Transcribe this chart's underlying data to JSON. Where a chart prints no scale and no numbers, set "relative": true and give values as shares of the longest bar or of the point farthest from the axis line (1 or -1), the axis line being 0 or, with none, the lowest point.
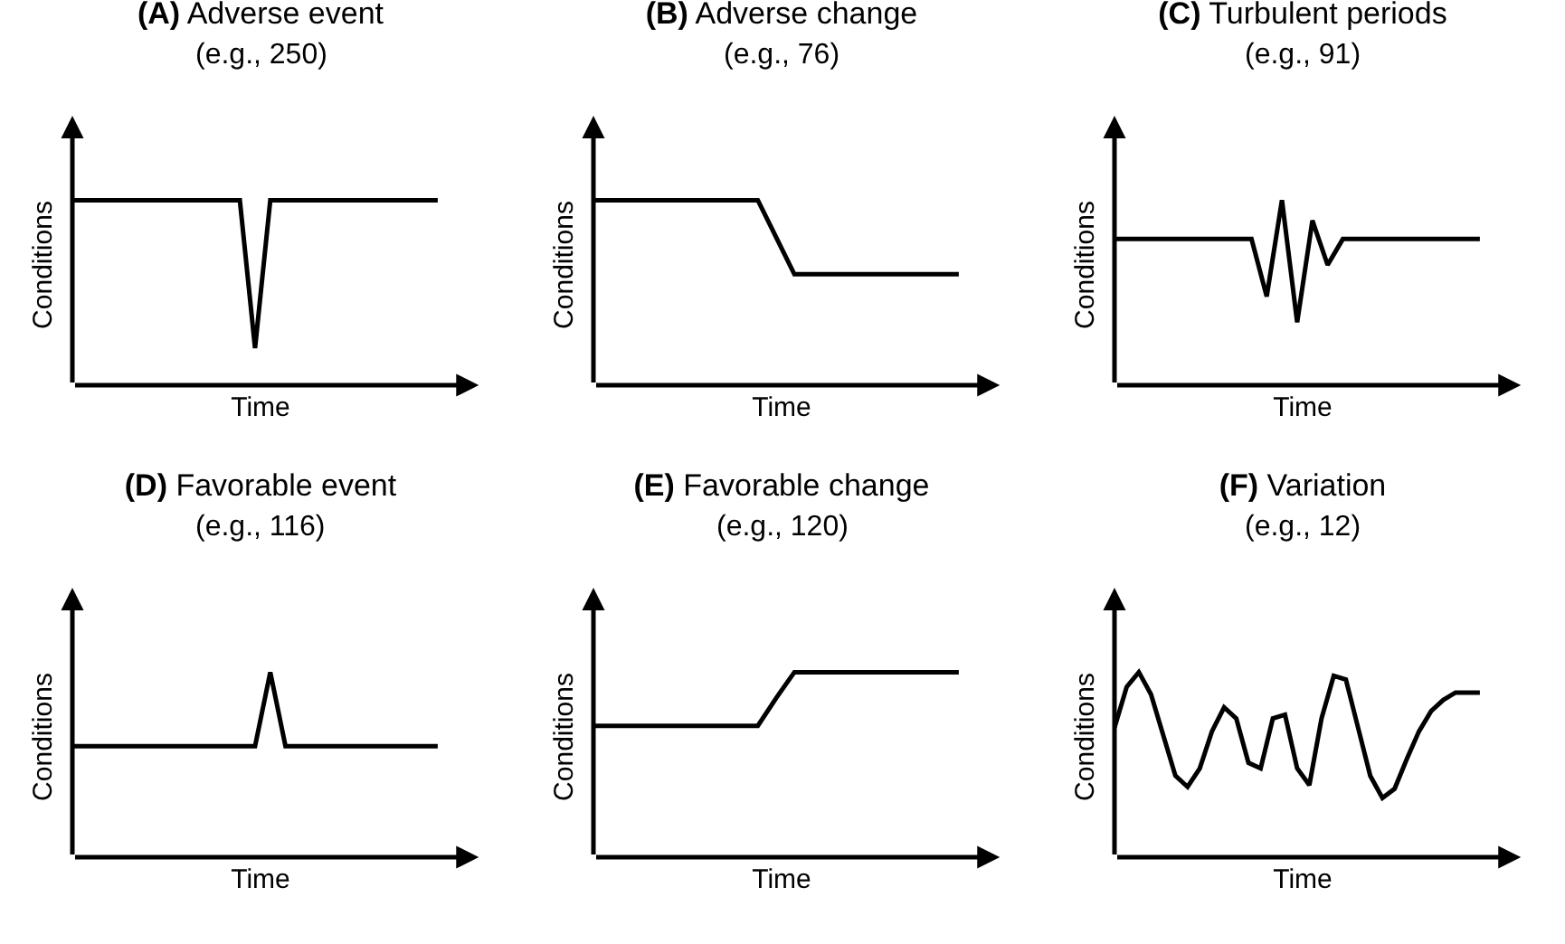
{
  "chart_data": [
    {
      "type": "line",
      "title": "(A) Adverse event",
      "subtitle": "(e.g., 250)",
      "xlabel": "Time",
      "ylabel": "Conditions",
      "relative": true,
      "color": "#000000",
      "marker": "none",
      "line_style": "solid",
      "grid": false,
      "legend": false,
      "categories": [
        null,
        null,
        null,
        null,
        null,
        null,
        null,
        null,
        null,
        null,
        null,
        null,
        null,
        null,
        null,
        null,
        null,
        null,
        null,
        null,
        null,
        null,
        null,
        null,
        null
      ],
      "values": [
        1,
        1,
        1,
        1,
        1,
        1,
        1,
        1,
        1,
        1,
        1,
        1,
        0.2,
        1,
        1,
        1,
        1,
        1,
        1,
        1,
        1,
        1,
        1,
        1,
        1
      ]
    },
    {
      "type": "line",
      "title": "(B) Adverse change",
      "subtitle": "(e.g., 76)",
      "xlabel": "Time",
      "ylabel": "Conditions",
      "relative": true,
      "color": "#000000",
      "marker": "none",
      "line_style": "solid",
      "grid": false,
      "legend": false,
      "categories": [
        null,
        null,
        null,
        null,
        null,
        null,
        null,
        null,
        null,
        null,
        null,
        null,
        null,
        null,
        null,
        null,
        null,
        null,
        null,
        null,
        null
      ],
      "values": [
        1,
        1,
        1,
        1,
        1,
        1,
        1,
        1,
        1,
        1,
        0.8,
        0.6,
        0.6,
        0.6,
        0.6,
        0.6,
        0.6,
        0.6,
        0.6,
        0.6,
        0.6
      ]
    },
    {
      "type": "line",
      "title": "(C) Turbulent periods",
      "subtitle": "(e.g., 91)",
      "xlabel": "Time",
      "ylabel": "Conditions",
      "relative": true,
      "color": "#000000",
      "marker": "none",
      "line_style": "solid",
      "grid": false,
      "legend": false,
      "categories": [
        null,
        null,
        null,
        null,
        null,
        null,
        null,
        null,
        null,
        null,
        null,
        null,
        null,
        null,
        null,
        null,
        null,
        null,
        null,
        null,
        null,
        null,
        null,
        null,
        null
      ],
      "values": [
        0.79,
        0.79,
        0.79,
        0.79,
        0.79,
        0.79,
        0.79,
        0.79,
        0.79,
        0.79,
        0.48,
        1,
        0.34,
        0.89,
        0.65,
        0.79,
        0.79,
        0.79,
        0.79,
        0.79,
        0.79,
        0.79,
        0.79,
        0.79,
        0.79
      ]
    },
    {
      "type": "line",
      "title": "(D) Favorable event",
      "subtitle": "(e.g., 116)",
      "xlabel": "Time",
      "ylabel": "Conditions",
      "relative": true,
      "color": "#000000",
      "marker": "none",
      "line_style": "solid",
      "grid": false,
      "legend": false,
      "categories": [
        null,
        null,
        null,
        null,
        null,
        null,
        null,
        null,
        null,
        null,
        null,
        null,
        null,
        null,
        null,
        null,
        null,
        null,
        null,
        null,
        null,
        null,
        null,
        null,
        null
      ],
      "values": [
        0.6,
        0.6,
        0.6,
        0.6,
        0.6,
        0.6,
        0.6,
        0.6,
        0.6,
        0.6,
        0.6,
        0.6,
        0.6,
        1,
        0.6,
        0.6,
        0.6,
        0.6,
        0.6,
        0.6,
        0.6,
        0.6,
        0.6,
        0.6,
        0.6
      ]
    },
    {
      "type": "line",
      "title": "(E) Favorable change",
      "subtitle": "(e.g., 120)",
      "xlabel": "Time",
      "ylabel": "Conditions",
      "relative": true,
      "color": "#000000",
      "marker": "none",
      "line_style": "solid",
      "grid": false,
      "legend": false,
      "categories": [
        null,
        null,
        null,
        null,
        null,
        null,
        null,
        null,
        null,
        null,
        null,
        null,
        null,
        null,
        null,
        null,
        null,
        null,
        null,
        null,
        null
      ],
      "values": [
        0.71,
        0.71,
        0.71,
        0.71,
        0.71,
        0.71,
        0.71,
        0.71,
        0.71,
        0.71,
        0.86,
        1,
        1,
        1,
        1,
        1,
        1,
        1,
        1,
        1,
        1
      ]
    },
    {
      "type": "line",
      "title": "(F) Variation",
      "subtitle": "(e.g., 12)",
      "xlabel": "Time",
      "ylabel": "Conditions",
      "relative": true,
      "color": "#000000",
      "marker": "none",
      "line_style": "solid",
      "grid": false,
      "legend": false,
      "categories": [
        null,
        null,
        null,
        null,
        null,
        null,
        null,
        null,
        null,
        null,
        null,
        null,
        null,
        null,
        null,
        null,
        null,
        null,
        null,
        null,
        null,
        null,
        null,
        null,
        null,
        null,
        null,
        null,
        null,
        null,
        null
      ],
      "values": [
        0.7,
        0.92,
        1,
        0.88,
        0.66,
        0.44,
        0.38,
        0.48,
        0.68,
        0.81,
        0.75,
        0.51,
        0.48,
        0.75,
        0.77,
        0.48,
        0.39,
        0.75,
        0.98,
        0.96,
        0.7,
        0.44,
        0.32,
        0.37,
        0.53,
        0.68,
        0.79,
        0.85,
        0.89,
        0.89,
        0.89
      ]
    }
  ]
}
